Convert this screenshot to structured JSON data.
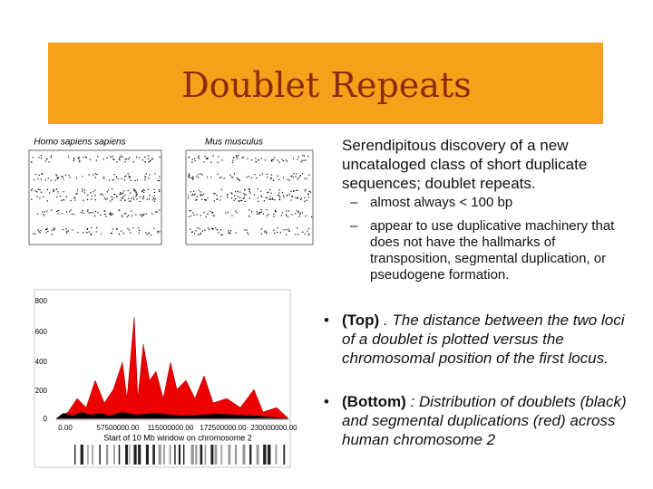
{
  "header": {
    "title": "Doublet Repeats"
  },
  "figures": {
    "top_left": {
      "title": "Homo sapiens sapiens"
    },
    "top_right": {
      "title": "Mus musculus"
    },
    "bottom": {
      "yticks": [
        "800",
        "600",
        "400",
        "200",
        "0"
      ],
      "xticks": [
        "0.00",
        "57500000.00",
        "115000000.00",
        "172500000.00",
        "230000000.00"
      ],
      "xlabel": "Start of 10 Mb window on chromosome 2"
    }
  },
  "bullets": [
    {
      "text": "Serendipitous discovery of a new uncataloged class of short duplicate sequences; doublet repeats.",
      "sub": [
        "almost always < 100 bp",
        "appear to use duplicative machinery that does not have the hallmarks of transposition, segmental duplication, or pseudogene formation."
      ]
    },
    {
      "lead": "(Top)",
      "rest": ". The distance between the two loci of a doublet is plotted versus the chromosomal position of the first locus."
    },
    {
      "lead": "(Bottom)",
      "rest": ": Distribution of doublets (black) and segmental duplications (red) across human chromosome 2"
    }
  ]
}
